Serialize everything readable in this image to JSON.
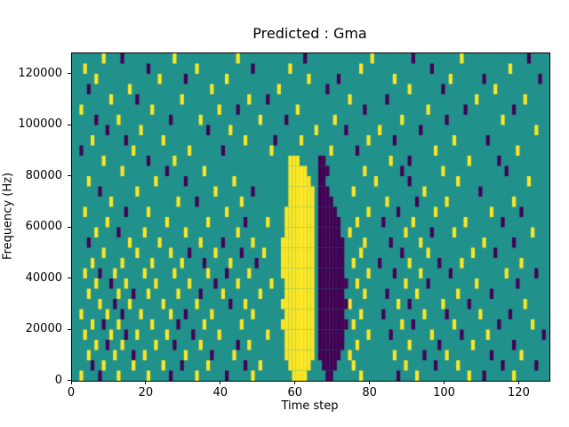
{
  "chart_data": {
    "type": "heatmap",
    "title": "Predicted : Gma",
    "xlabel": "Time step",
    "ylabel": "Frequency (Hz)",
    "x_ticks": [
      0,
      20,
      40,
      60,
      80,
      100,
      120
    ],
    "y_ticks": [
      0,
      20000,
      40000,
      60000,
      80000,
      100000,
      120000
    ],
    "x_range": [
      0,
      128
    ],
    "y_range": [
      0,
      128000
    ],
    "n_cols": 128,
    "n_rows": 32,
    "legend": "none",
    "grid": "off",
    "colors": {
      "background": "#21918c",
      "high": "#fde725",
      "low": "#440154"
    },
    "value_legend": {
      "background": 0,
      "high": 1,
      "low": -1
    },
    "rows_note": "rows listed top (highest frequency) to bottom (0 Hz); y = columns with high/yellow cells, p = columns with low/dark cells",
    "rows": [
      {
        "y": [
          8,
          27,
          44,
          80,
          104
        ],
        "p": [
          13,
          62,
          91,
          122
        ]
      },
      {
        "y": [
          3,
          33,
          58,
          77,
          117
        ],
        "p": [
          20,
          48,
          96
        ]
      },
      {
        "y": [
          6,
          23,
          41,
          63,
          86,
          101
        ],
        "p": [
          30,
          71,
          110,
          125
        ]
      },
      {
        "y": [
          15,
          37,
          55,
          90,
          113
        ],
        "p": [
          4,
          68,
          99
        ]
      },
      {
        "y": [
          10,
          29,
          47,
          74,
          108,
          121
        ],
        "p": [
          17,
          52,
          84
        ]
      },
      {
        "y": [
          2,
          21,
          39,
          60,
          95
        ],
        "p": [
          44,
          78,
          105,
          118
        ]
      },
      {
        "y": [
          12,
          34,
          50,
          70,
          88,
          115
        ],
        "p": [
          6,
          26,
          57,
          100
        ]
      },
      {
        "y": [
          18,
          42,
          65,
          82,
          124
        ],
        "p": [
          9,
          36,
          73,
          93
        ]
      },
      {
        "y": [
          5,
          24,
          46,
          61,
          79,
          102
        ],
        "p": [
          14,
          54,
          86,
          111
        ]
      },
      {
        "y": [
          16,
          31,
          53,
          69,
          97,
          119
        ],
        "p": [
          2,
          40,
          76
        ]
      },
      {
        "y": [
          8,
          27,
          58,
          59,
          60,
          85,
          106
        ],
        "p": [
          20,
          66,
          67,
          90,
          114
        ]
      },
      {
        "y": [
          13,
          35,
          58,
          59,
          60,
          61,
          62,
          78,
          99
        ],
        "p": [
          25,
          66,
          67,
          68,
          88,
          116
        ]
      },
      {
        "y": [
          4,
          22,
          43,
          58,
          59,
          60,
          61,
          62,
          63,
          81,
          103,
          122
        ],
        "p": [
          30,
          66,
          67,
          90
        ]
      },
      {
        "y": [
          17,
          38,
          58,
          59,
          60,
          61,
          62,
          63,
          64,
          75,
          94
        ],
        "p": [
          7,
          48,
          66,
          67,
          68,
          109
        ]
      },
      {
        "y": [
          10,
          28,
          45,
          58,
          59,
          60,
          61,
          62,
          63,
          64,
          84,
          100,
          118
        ],
        "p": [
          33,
          66,
          67,
          68,
          69,
          92
        ]
      },
      {
        "y": [
          3,
          20,
          41,
          57,
          58,
          59,
          60,
          61,
          62,
          63,
          64,
          79,
          97,
          112
        ],
        "p": [
          14,
          66,
          67,
          68,
          69,
          70,
          87,
          120
        ]
      },
      {
        "y": [
          9,
          25,
          36,
          52,
          57,
          58,
          59,
          60,
          61,
          62,
          63,
          64,
          76,
          91,
          105
        ],
        "p": [
          46,
          66,
          67,
          68,
          69,
          70,
          71,
          83,
          115
        ]
      },
      {
        "y": [
          6,
          19,
          30,
          44,
          57,
          58,
          59,
          60,
          61,
          62,
          63,
          64,
          74,
          89,
          102,
          123
        ],
        "p": [
          12,
          66,
          67,
          68,
          69,
          70,
          71,
          96
        ]
      },
      {
        "y": [
          15,
          23,
          34,
          48,
          56,
          57,
          58,
          59,
          60,
          61,
          62,
          63,
          64,
          78,
          93,
          110
        ],
        "p": [
          4,
          40,
          66,
          67,
          68,
          69,
          70,
          71,
          72,
          85,
          118
        ]
      },
      {
        "y": [
          8,
          17,
          26,
          38,
          51,
          56,
          57,
          58,
          59,
          60,
          61,
          62,
          63,
          64,
          77,
          95,
          107
        ],
        "p": [
          31,
          45,
          66,
          67,
          68,
          69,
          70,
          71,
          72,
          88,
          113
        ]
      },
      {
        "y": [
          5,
          13,
          21,
          29,
          42,
          56,
          57,
          58,
          59,
          60,
          61,
          62,
          63,
          64,
          75,
          90,
          104,
          120
        ],
        "p": [
          35,
          49,
          66,
          67,
          68,
          69,
          70,
          71,
          72,
          82,
          98
        ]
      },
      {
        "y": [
          3,
          11,
          19,
          27,
          36,
          47,
          56,
          57,
          58,
          59,
          60,
          61,
          62,
          63,
          64,
          79,
          93,
          116
        ],
        "p": [
          7,
          41,
          66,
          67,
          68,
          69,
          70,
          71,
          72,
          86,
          101,
          124
        ]
      },
      {
        "y": [
          6,
          14,
          22,
          31,
          44,
          53,
          57,
          58,
          59,
          60,
          61,
          62,
          63,
          64,
          76,
          89,
          108
        ],
        "p": [
          10,
          38,
          66,
          67,
          68,
          69,
          70,
          71,
          72,
          73,
          95,
          119
        ]
      },
      {
        "y": [
          4,
          12,
          20,
          28,
          40,
          50,
          57,
          58,
          59,
          60,
          61,
          62,
          63,
          64,
          78,
          92,
          103
        ],
        "p": [
          16,
          34,
          66,
          67,
          68,
          69,
          70,
          71,
          72,
          84,
          112
        ]
      },
      {
        "y": [
          7,
          15,
          24,
          33,
          46,
          56,
          57,
          58,
          59,
          60,
          61,
          62,
          63,
          64,
          74,
          87,
          99,
          121
        ],
        "p": [
          11,
          42,
          66,
          67,
          68,
          69,
          70,
          71,
          72,
          73,
          90,
          106
        ]
      },
      {
        "y": [
          2,
          9,
          18,
          26,
          37,
          48,
          57,
          58,
          59,
          60,
          61,
          62,
          63,
          64,
          77,
          94,
          109
        ],
        "p": [
          13,
          30,
          66,
          67,
          68,
          69,
          70,
          71,
          72,
          83,
          100,
          117
        ]
      },
      {
        "y": [
          5,
          12,
          21,
          35,
          45,
          56,
          57,
          58,
          59,
          60,
          61,
          62,
          63,
          64,
          75,
          88,
          102,
          123
        ],
        "p": [
          8,
          28,
          66,
          67,
          68,
          69,
          70,
          71,
          72,
          73,
          91,
          114
        ]
      },
      {
        "y": [
          3,
          10,
          17,
          25,
          39,
          52,
          57,
          58,
          59,
          60,
          61,
          62,
          63,
          64,
          79,
          96,
          111
        ],
        "p": [
          14,
          32,
          66,
          67,
          68,
          69,
          70,
          71,
          72,
          85,
          104,
          126
        ]
      },
      {
        "y": [
          6,
          13,
          22,
          34,
          47,
          57,
          58,
          59,
          60,
          61,
          62,
          63,
          64,
          76,
          90,
          107
        ],
        "p": [
          9,
          27,
          44,
          66,
          67,
          68,
          69,
          70,
          71,
          72,
          98,
          118
        ]
      },
      {
        "y": [
          4,
          11,
          19,
          30,
          43,
          57,
          58,
          59,
          60,
          61,
          62,
          63,
          64,
          74,
          86,
          100,
          120
        ],
        "p": [
          16,
          37,
          66,
          67,
          68,
          69,
          70,
          71,
          94,
          112
        ]
      },
      {
        "y": [
          8,
          16,
          24,
          36,
          50,
          58,
          59,
          60,
          61,
          62,
          63,
          75,
          89,
          103
        ],
        "p": [
          5,
          29,
          46,
          67,
          68,
          69,
          70,
          97,
          115,
          124
        ]
      },
      {
        "y": [
          2,
          12,
          20,
          33,
          48,
          59,
          60,
          61,
          62,
          77,
          92,
          106,
          118
        ],
        "p": [
          7,
          26,
          41,
          68,
          69,
          87,
          110
        ]
      }
    ]
  }
}
